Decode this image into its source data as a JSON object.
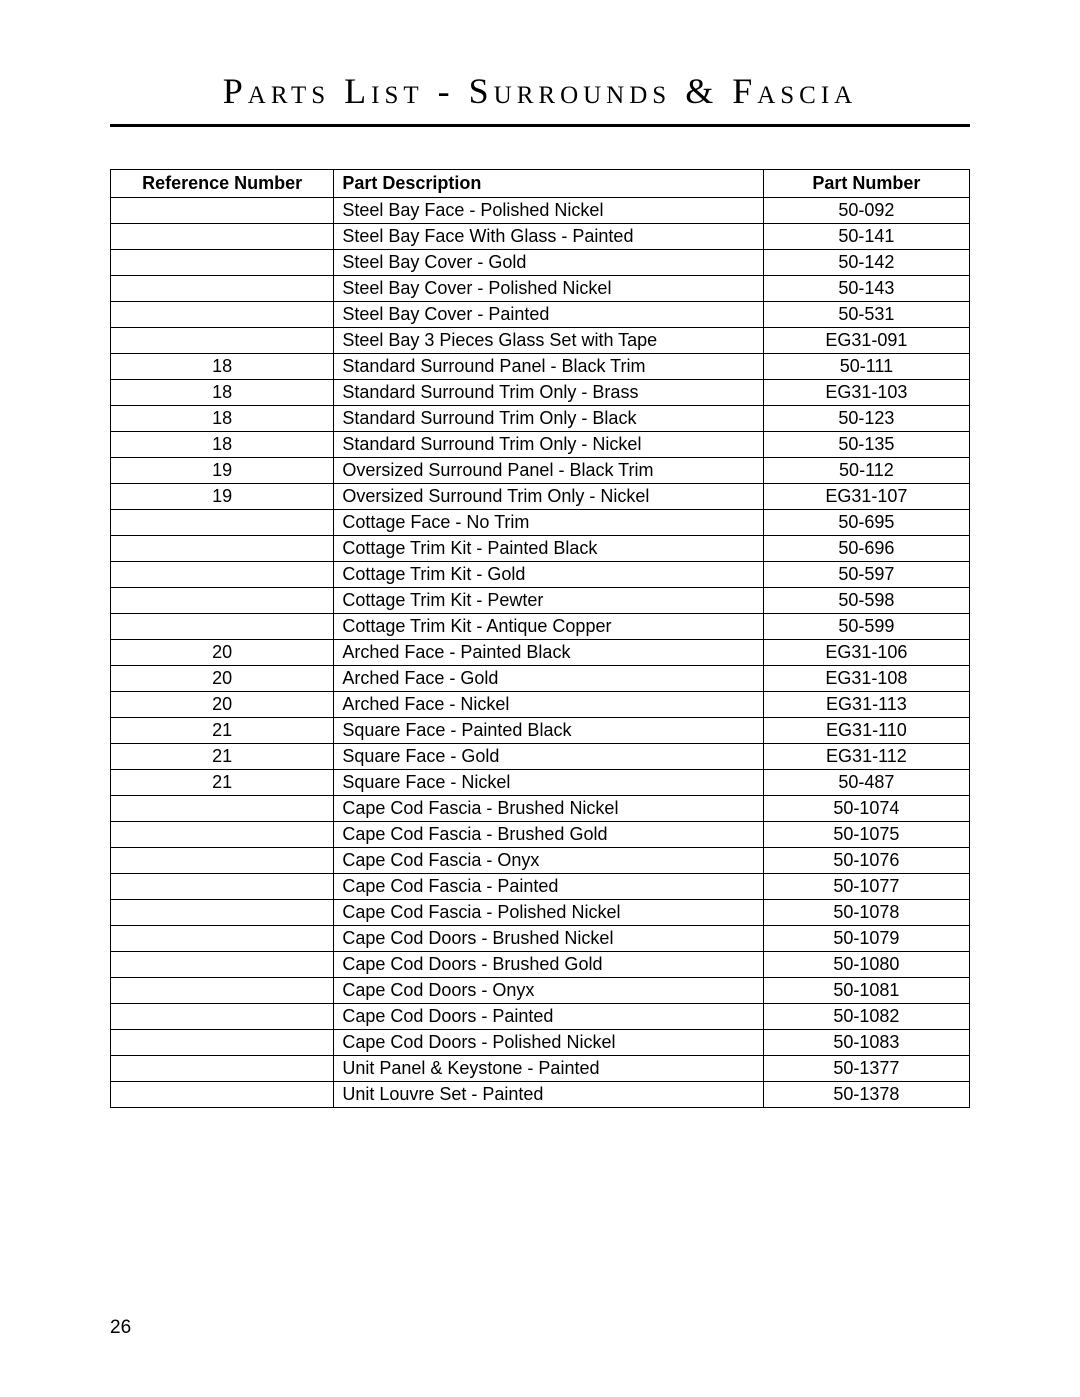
{
  "title": "Parts List - Surrounds & Fascia",
  "pageNumber": "26",
  "columns": {
    "ref": "Reference Number",
    "desc": "Part Description",
    "num": "Part Number"
  },
  "rows": [
    {
      "ref": "",
      "desc": "Steel Bay Face - Polished Nickel",
      "num": "50-092"
    },
    {
      "ref": "",
      "desc": "Steel Bay Face With Glass -  Painted",
      "num": "50-141"
    },
    {
      "ref": "",
      "desc": "Steel Bay Cover - Gold",
      "num": "50-142"
    },
    {
      "ref": "",
      "desc": "Steel Bay Cover - Polished Nickel",
      "num": "50-143"
    },
    {
      "ref": "",
      "desc": "Steel Bay Cover - Painted",
      "num": "50-531"
    },
    {
      "ref": "",
      "desc": "Steel Bay 3 Pieces Glass Set with Tape",
      "num": "EG31-091"
    },
    {
      "ref": "18",
      "desc": "Standard Surround Panel - Black Trim",
      "num": "50-111"
    },
    {
      "ref": "18",
      "desc": "Standard Surround Trim Only - Brass",
      "num": "EG31-103"
    },
    {
      "ref": "18",
      "desc": "Standard Surround Trim Only - Black",
      "num": "50-123"
    },
    {
      "ref": "18",
      "desc": "Standard Surround Trim Only - Nickel",
      "num": "50-135"
    },
    {
      "ref": "19",
      "desc": "Oversized Surround Panel - Black Trim",
      "num": "50-112"
    },
    {
      "ref": "19",
      "desc": "Oversized Surround Trim Only - Nickel",
      "num": "EG31-107"
    },
    {
      "ref": "",
      "desc": "Cottage Face - No Trim",
      "num": "50-695"
    },
    {
      "ref": "",
      "desc": "Cottage Trim Kit - Painted Black",
      "num": "50-696"
    },
    {
      "ref": "",
      "desc": "Cottage Trim Kit - Gold",
      "num": "50-597"
    },
    {
      "ref": "",
      "desc": "Cottage Trim Kit - Pewter",
      "num": "50-598"
    },
    {
      "ref": "",
      "desc": "Cottage Trim Kit - Antique Copper",
      "num": "50-599"
    },
    {
      "ref": "20",
      "desc": "Arched Face -  Painted Black",
      "num": "EG31-106"
    },
    {
      "ref": "20",
      "desc": "Arched Face - Gold",
      "num": "EG31-108"
    },
    {
      "ref": "20",
      "desc": "Arched Face - Nickel",
      "num": "EG31-113"
    },
    {
      "ref": "21",
      "desc": "Square Face - Painted Black",
      "num": "EG31-110"
    },
    {
      "ref": "21",
      "desc": "Square Face - Gold",
      "num": "EG31-112"
    },
    {
      "ref": "21",
      "desc": "Square Face - Nickel",
      "num": "50-487"
    },
    {
      "ref": "",
      "desc": "Cape Cod Fascia - Brushed Nickel",
      "num": "50-1074"
    },
    {
      "ref": "",
      "desc": "Cape Cod Fascia - Brushed Gold",
      "num": "50-1075"
    },
    {
      "ref": "",
      "desc": "Cape Cod Fascia - Onyx",
      "num": "50-1076"
    },
    {
      "ref": "",
      "desc": "Cape Cod Fascia - Painted",
      "num": "50-1077"
    },
    {
      "ref": "",
      "desc": "Cape Cod Fascia - Polished Nickel",
      "num": "50-1078"
    },
    {
      "ref": "",
      "desc": "Cape Cod Doors - Brushed Nickel",
      "num": "50-1079"
    },
    {
      "ref": "",
      "desc": "Cape Cod Doors - Brushed Gold",
      "num": "50-1080"
    },
    {
      "ref": "",
      "desc": "Cape Cod Doors - Onyx",
      "num": "50-1081"
    },
    {
      "ref": "",
      "desc": "Cape Cod Doors - Painted",
      "num": "50-1082"
    },
    {
      "ref": "",
      "desc": "Cape Cod Doors - Polished Nickel",
      "num": "50-1083"
    },
    {
      "ref": "",
      "desc": "Unit Panel & Keystone -  Painted",
      "num": "50-1377"
    },
    {
      "ref": "",
      "desc": "Unit Louvre Set  -  Painted",
      "num": "50-1378"
    }
  ]
}
